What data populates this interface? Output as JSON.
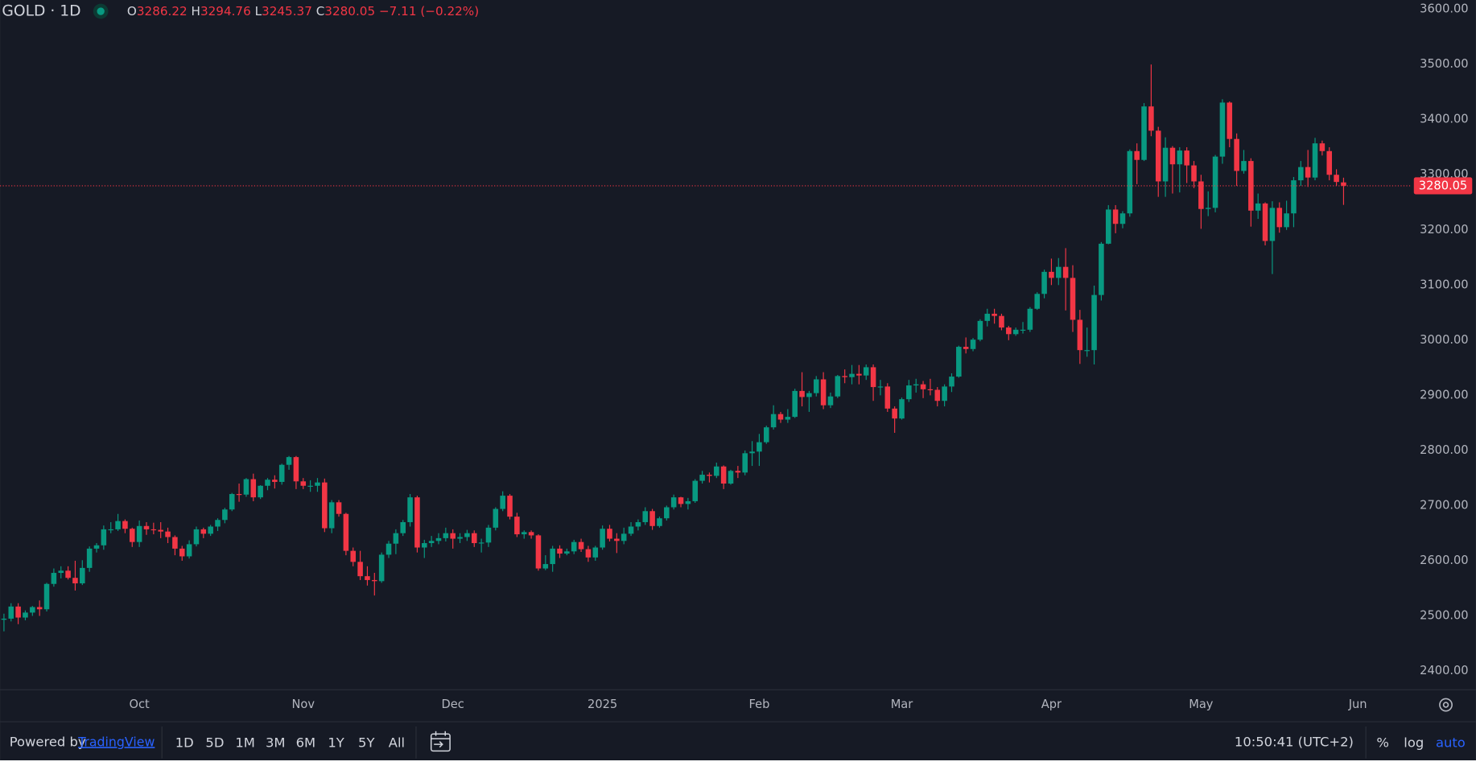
{
  "chart_data": {
    "type": "candlestick",
    "symbol": "GOLD · 1D",
    "ohlc_labels": [
      "O",
      "H",
      "L",
      "C"
    ],
    "change": "−7.11 (−0.22%)",
    "up_color": "#089981",
    "down_color": "#f23645",
    "ylim": [
      2366,
      3617
    ],
    "yticks": [
      {
        "value": 2400,
        "label": "2400.00"
      },
      {
        "value": 2500,
        "label": "2500.00"
      },
      {
        "value": 2600,
        "label": "2600.00"
      },
      {
        "value": 2700,
        "label": "2700.00"
      },
      {
        "value": 2800,
        "label": "2800.00"
      },
      {
        "value": 2900,
        "label": "2900.00"
      },
      {
        "value": 3000,
        "label": "3000.00"
      },
      {
        "value": 3100,
        "label": "3100.00"
      },
      {
        "value": 3200,
        "label": "3200.00"
      },
      {
        "value": 3300,
        "label": "3300.00"
      },
      {
        "value": 3400,
        "label": "3400.00"
      },
      {
        "value": 3500,
        "label": "3500.00"
      },
      {
        "value": 3600,
        "label": "3600.00"
      }
    ],
    "categories": [
      null,
      null,
      null,
      null,
      null,
      null,
      null,
      null,
      null,
      null,
      null,
      null,
      null,
      null,
      null,
      null,
      null,
      null,
      null,
      null,
      "Oct",
      null,
      null,
      null,
      null,
      null,
      null,
      null,
      null,
      null,
      null,
      null,
      null,
      null,
      null,
      null,
      null,
      null,
      null,
      null,
      null,
      null,
      null,
      "Nov",
      null,
      null,
      null,
      null,
      null,
      null,
      null,
      null,
      null,
      null,
      null,
      null,
      null,
      null,
      null,
      null,
      null,
      null,
      null,
      null,
      "Dec",
      null,
      null,
      null,
      null,
      null,
      null,
      null,
      null,
      null,
      null,
      null,
      null,
      null,
      null,
      null,
      null,
      null,
      null,
      null,
      null,
      "2025",
      null,
      null,
      null,
      null,
      null,
      null,
      null,
      null,
      null,
      null,
      null,
      null,
      null,
      null,
      null,
      null,
      null,
      null,
      null,
      null,
      null,
      "Feb",
      null,
      null,
      null,
      null,
      null,
      null,
      null,
      null,
      null,
      null,
      null,
      null,
      null,
      null,
      null,
      null,
      null,
      null,
      null,
      "Mar",
      null,
      null,
      null,
      null,
      null,
      null,
      null,
      null,
      null,
      null,
      null,
      null,
      null,
      null,
      null,
      null,
      null,
      null,
      null,
      null,
      "Apr",
      null,
      null,
      null,
      null,
      null,
      null,
      null,
      null,
      null,
      null,
      null,
      null,
      null,
      null,
      null,
      null,
      null,
      null,
      null,
      null,
      "May",
      null,
      null,
      null,
      null,
      null,
      null,
      null,
      null,
      null,
      null,
      null,
      null,
      null,
      null,
      null,
      null,
      null,
      null,
      null,
      null
    ],
    "next_month_label": "Jun",
    "open": [
      2500,
      2493,
      2495,
      2517,
      2497,
      2506,
      2516,
      2512,
      2558,
      2578,
      2582,
      2569,
      2559,
      2587,
      2622,
      2628,
      2657,
      2657,
      2672,
      2658,
      2634,
      2663,
      2657,
      2656,
      2653,
      2643,
      2622,
      2608,
      2630,
      2657,
      2649,
      2662,
      2674,
      2693,
      2721,
      2720,
      2748,
      2715,
      2736,
      2747,
      2743,
      2774,
      2788,
      2744,
      2736,
      2736,
      2742,
      2659,
      2706,
      2685,
      2618,
      2598,
      2572,
      2565,
      2563,
      2611,
      2631,
      2650,
      2670,
      2715,
      2624,
      2632,
      2636,
      2641,
      2650,
      2640,
      2643,
      2650,
      2632,
      2633,
      2660,
      2694,
      2718,
      2680,
      2648,
      2652,
      2646,
      2586,
      2594,
      2622,
      2613,
      2617,
      2634,
      2621,
      2606,
      2624,
      2658,
      2640,
      2636,
      2649,
      2662,
      2670,
      2690,
      2663,
      2677,
      2697,
      2715,
      2703,
      2708,
      2745,
      2756,
      2754,
      2771,
      2740,
      2763,
      2760,
      2795,
      2798,
      2815,
      2842,
      2866,
      2856,
      2861,
      2908,
      2897,
      2904,
      2929,
      2882,
      2898,
      2935,
      2933,
      2939,
      2936,
      2951,
      2915,
      2916,
      2876,
      2858,
      2893,
      2918,
      2920,
      2911,
      2910,
      2890,
      2916,
      2934,
      2988,
      2984,
      3001,
      3035,
      3048,
      3044,
      3023,
      3011,
      3019,
      3019,
      3057,
      3084,
      3124,
      3113,
      3133,
      3113,
      3037,
      2982,
      2982,
      3082,
      3175,
      3237,
      3211,
      3230,
      3343,
      3327,
      3424,
      3380,
      3288,
      3349,
      3319,
      3344,
      3317,
      3288,
      3238,
      3240,
      3333,
      3431,
      3365,
      3307,
      3325,
      3235,
      3248,
      3180,
      3240,
      3205,
      3230,
      3290,
      3314,
      3295,
      3357,
      3343,
      3300,
      3286.22
    ],
    "high": [
      2507,
      2504,
      2523,
      2523,
      2510,
      2518,
      2528,
      2560,
      2586,
      2590,
      2590,
      2600,
      2601,
      2626,
      2632,
      2664,
      2670,
      2685,
      2675,
      2660,
      2673,
      2670,
      2669,
      2670,
      2660,
      2646,
      2627,
      2637,
      2662,
      2660,
      2665,
      2677,
      2696,
      2723,
      2740,
      2750,
      2758,
      2737,
      2750,
      2755,
      2776,
      2790,
      2790,
      2750,
      2746,
      2750,
      2749,
      2710,
      2710,
      2687,
      2624,
      2618,
      2590,
      2578,
      2615,
      2636,
      2657,
      2674,
      2721,
      2718,
      2638,
      2645,
      2650,
      2660,
      2657,
      2650,
      2656,
      2655,
      2640,
      2665,
      2697,
      2726,
      2721,
      2687,
      2655,
      2655,
      2648,
      2610,
      2627,
      2628,
      2622,
      2638,
      2640,
      2627,
      2627,
      2664,
      2665,
      2650,
      2660,
      2670,
      2675,
      2697,
      2694,
      2680,
      2700,
      2720,
      2716,
      2714,
      2748,
      2763,
      2760,
      2778,
      2773,
      2765,
      2772,
      2800,
      2817,
      2830,
      2845,
      2882,
      2870,
      2875,
      2912,
      2942,
      2908,
      2935,
      2942,
      2905,
      2937,
      2947,
      2955,
      2955,
      2956,
      2956,
      2928,
      2922,
      2880,
      2896,
      2928,
      2930,
      2926,
      2930,
      2915,
      2920,
      2940,
      2990,
      3005,
      3004,
      3038,
      3057,
      3057,
      3048,
      3026,
      3023,
      3033,
      3060,
      3087,
      3128,
      3148,
      3149,
      3167,
      3136,
      3055,
      3023,
      3099,
      3178,
      3245,
      3245,
      3234,
      3346,
      3357,
      3430,
      3500,
      3387,
      3368,
      3352,
      3350,
      3350,
      3325,
      3300,
      3270,
      3336,
      3437,
      3433,
      3375,
      3345,
      3330,
      3266,
      3250,
      3252,
      3250,
      3253,
      3296,
      3325,
      3345,
      3367,
      3362,
      3350,
      3310,
      3294.76
    ],
    "low": [
      2485,
      2472,
      2490,
      2485,
      2492,
      2500,
      2500,
      2508,
      2553,
      2568,
      2566,
      2546,
      2556,
      2580,
      2615,
      2620,
      2650,
      2654,
      2650,
      2625,
      2625,
      2647,
      2648,
      2641,
      2632,
      2610,
      2600,
      2604,
      2626,
      2641,
      2645,
      2654,
      2668,
      2690,
      2707,
      2716,
      2708,
      2712,
      2728,
      2731,
      2738,
      2765,
      2730,
      2730,
      2725,
      2725,
      2652,
      2650,
      2680,
      2610,
      2590,
      2565,
      2555,
      2537,
      2560,
      2605,
      2612,
      2645,
      2662,
      2615,
      2605,
      2625,
      2630,
      2635,
      2622,
      2632,
      2636,
      2625,
      2615,
      2625,
      2655,
      2690,
      2675,
      2643,
      2640,
      2640,
      2582,
      2583,
      2580,
      2605,
      2610,
      2612,
      2616,
      2598,
      2600,
      2620,
      2635,
      2614,
      2630,
      2645,
      2655,
      2665,
      2656,
      2660,
      2673,
      2693,
      2697,
      2693,
      2705,
      2740,
      2742,
      2750,
      2730,
      2738,
      2750,
      2755,
      2772,
      2772,
      2812,
      2838,
      2850,
      2850,
      2859,
      2880,
      2870,
      2898,
      2875,
      2877,
      2895,
      2922,
      2920,
      2920,
      2928,
      2890,
      2900,
      2870,
      2832,
      2856,
      2888,
      2905,
      2895,
      2900,
      2880,
      2880,
      2906,
      2932,
      2976,
      2980,
      2998,
      3025,
      3030,
      3018,
      3000,
      3008,
      3012,
      3015,
      3055,
      3076,
      3100,
      3100,
      3054,
      3015,
      2957,
      2970,
      2956,
      3072,
      3174,
      3194,
      3203,
      3224,
      3283,
      3325,
      3370,
      3260,
      3260,
      3266,
      3268,
      3285,
      3276,
      3202,
      3225,
      3232,
      3320,
      3350,
      3280,
      3302,
      3206,
      3220,
      3172,
      3120,
      3195,
      3200,
      3205,
      3280,
      3278,
      3290,
      3335,
      3290,
      3280,
      3245.37
    ],
    "close": [
      2493,
      2495,
      2517,
      2497,
      2506,
      2516,
      2512,
      2558,
      2578,
      2582,
      2569,
      2559,
      2587,
      2622,
      2628,
      2657,
      2657,
      2672,
      2658,
      2634,
      2663,
      2657,
      2656,
      2653,
      2643,
      2622,
      2608,
      2630,
      2657,
      2649,
      2662,
      2674,
      2693,
      2721,
      2720,
      2748,
      2715,
      2736,
      2747,
      2743,
      2774,
      2788,
      2744,
      2736,
      2736,
      2742,
      2659,
      2706,
      2685,
      2618,
      2598,
      2572,
      2565,
      2563,
      2611,
      2631,
      2650,
      2670,
      2715,
      2624,
      2632,
      2636,
      2641,
      2650,
      2640,
      2643,
      2650,
      2632,
      2633,
      2660,
      2694,
      2718,
      2680,
      2648,
      2652,
      2646,
      2586,
      2594,
      2622,
      2613,
      2617,
      2634,
      2621,
      2606,
      2624,
      2658,
      2640,
      2636,
      2649,
      2662,
      2670,
      2690,
      2663,
      2677,
      2697,
      2715,
      2703,
      2708,
      2745,
      2756,
      2754,
      2771,
      2740,
      2763,
      2760,
      2795,
      2798,
      2815,
      2842,
      2866,
      2856,
      2861,
      2908,
      2897,
      2904,
      2929,
      2882,
      2898,
      2935,
      2933,
      2939,
      2936,
      2951,
      2915,
      2916,
      2876,
      2858,
      2893,
      2918,
      2920,
      2911,
      2910,
      2890,
      2916,
      2934,
      2988,
      2984,
      3001,
      3035,
      3048,
      3044,
      3023,
      3011,
      3019,
      3019,
      3057,
      3084,
      3124,
      3113,
      3133,
      3113,
      3037,
      2982,
      2982,
      3082,
      3175,
      3237,
      3211,
      3230,
      3343,
      3327,
      3424,
      3380,
      3288,
      3349,
      3319,
      3344,
      3317,
      3288,
      3238,
      3240,
      3333,
      3431,
      3365,
      3307,
      3325,
      3235,
      3248,
      3180,
      3240,
      3205,
      3230,
      3290,
      3314,
      3295,
      3357,
      3343,
      3300,
      3287,
      3280.05
    ]
  },
  "toolbar": {
    "powered_by": "Powered by",
    "brand": "TradingView",
    "ranges": [
      "1D",
      "5D",
      "1M",
      "3M",
      "6M",
      "1Y",
      "5Y",
      "All"
    ],
    "clock": "10:50:41 (UTC+2)",
    "options": [
      "%",
      "log",
      "auto"
    ]
  }
}
